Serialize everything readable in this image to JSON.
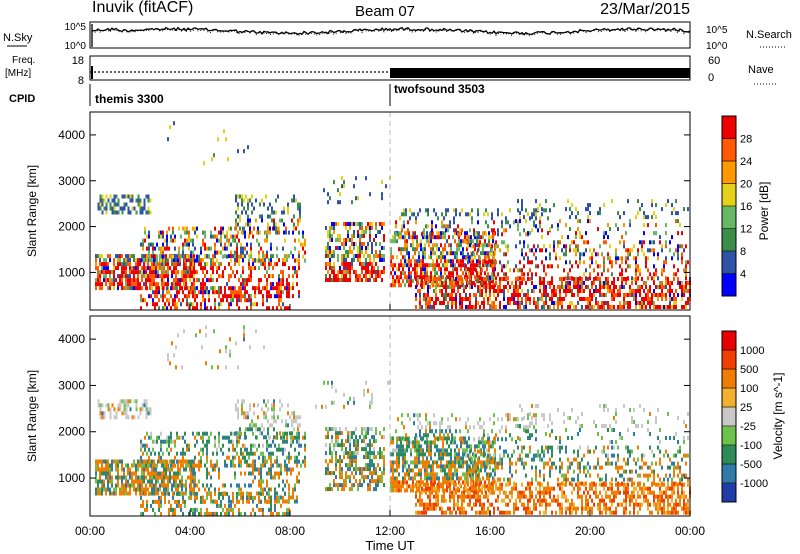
{
  "header": {
    "station": "Inuvik (fitACF)",
    "beam": "Beam 07",
    "date": "23/Mar/2015"
  },
  "noise_panel": {
    "left_label": "N.Sky",
    "right_label": "N.Search",
    "left_ticks": [
      "10^5",
      "10^0"
    ],
    "right_ticks": [
      "10^5",
      "10^0"
    ]
  },
  "freq_panel": {
    "left_label_1": "Freq.",
    "left_label_2": "[MHz]",
    "right_label": "Nave",
    "left_ticks": [
      "18",
      "8"
    ],
    "right_ticks": [
      "60",
      "0"
    ]
  },
  "cpid": {
    "label": "CPID",
    "segments": [
      {
        "name": "themis 3300",
        "start_hour": 0
      },
      {
        "name": "twofsound 3503",
        "start_hour": 12
      }
    ]
  },
  "x_axis": {
    "label": "Time UT",
    "ticks": [
      "00:00",
      "04:00",
      "08:00",
      "12:00",
      "16:00",
      "20:00",
      "00:00"
    ],
    "range_hours": [
      0,
      24
    ]
  },
  "y_axis": {
    "label": "Slant Range [km]",
    "ticks": [
      "1000",
      "2000",
      "3000",
      "4000"
    ],
    "range_km": [
      180,
      4500
    ]
  },
  "chart_data": [
    {
      "type": "heatmap",
      "title": "Power",
      "colorbar_label": "Power [dB]",
      "colorbar_ticks": [
        "4",
        "8",
        "12",
        "16",
        "20",
        "24",
        "28"
      ],
      "colorbar_range": [
        0,
        30
      ],
      "colors": [
        "#0000ff",
        "#2d52a8",
        "#3c8c4a",
        "#66b866",
        "#e6d11a",
        "#ff9900",
        "#ff5a00",
        "#ee0000"
      ]
    },
    {
      "type": "heatmap",
      "title": "Velocity",
      "colorbar_label": "Velocity [m s^-1]",
      "colorbar_ticks": [
        "1000",
        "500",
        "100",
        "25",
        "-25",
        "-100",
        "-500",
        "-1000"
      ],
      "colorbar_range": [
        -1200,
        1200
      ],
      "colors": [
        "#1f3ca8",
        "#2f7aa8",
        "#2e8b57",
        "#6cc24a",
        "#c8c8c8",
        "#f0b030",
        "#f07c00",
        "#f04000",
        "#e60000"
      ]
    }
  ],
  "colors": {
    "axis": "#000000",
    "dashed_divider": "#bbbbbb",
    "cpid_tick": "#000000"
  }
}
